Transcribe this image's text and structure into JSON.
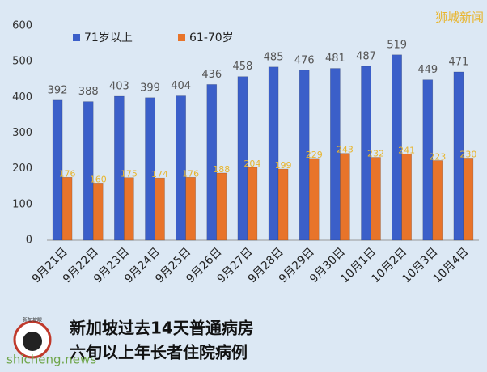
{
  "chart_data": {
    "type": "bar",
    "title": "新加坡过去14天普通病房",
    "subtitle": "六旬以上年长者住院病例",
    "watermark": "狮城新闻",
    "source": "shicheng.news",
    "logo_text": "新加坡眼",
    "categories": [
      "9月21日",
      "9月22日",
      "9月23日",
      "9月24日",
      "9月25日",
      "9月26日",
      "9月27日",
      "9月28日",
      "9月29日",
      "9月30日",
      "10月1日",
      "10月2日",
      "10月3日",
      "10月4日"
    ],
    "series": [
      {
        "name": "71岁以上",
        "color": "#3b5fc9",
        "label_color": "#555555",
        "values": [
          392,
          388,
          403,
          399,
          404,
          436,
          458,
          485,
          476,
          481,
          487,
          519,
          449,
          471
        ]
      },
      {
        "name": "61-70岁",
        "color": "#e8742a",
        "label_color": "#e8b52e",
        "values": [
          176,
          160,
          175,
          174,
          176,
          188,
          204,
          199,
          229,
          243,
          232,
          241,
          223,
          230
        ]
      }
    ],
    "ylim": [
      0,
      600
    ],
    "yticks": [
      0,
      100,
      200,
      300,
      400,
      500,
      600
    ],
    "legend": "top-left"
  }
}
